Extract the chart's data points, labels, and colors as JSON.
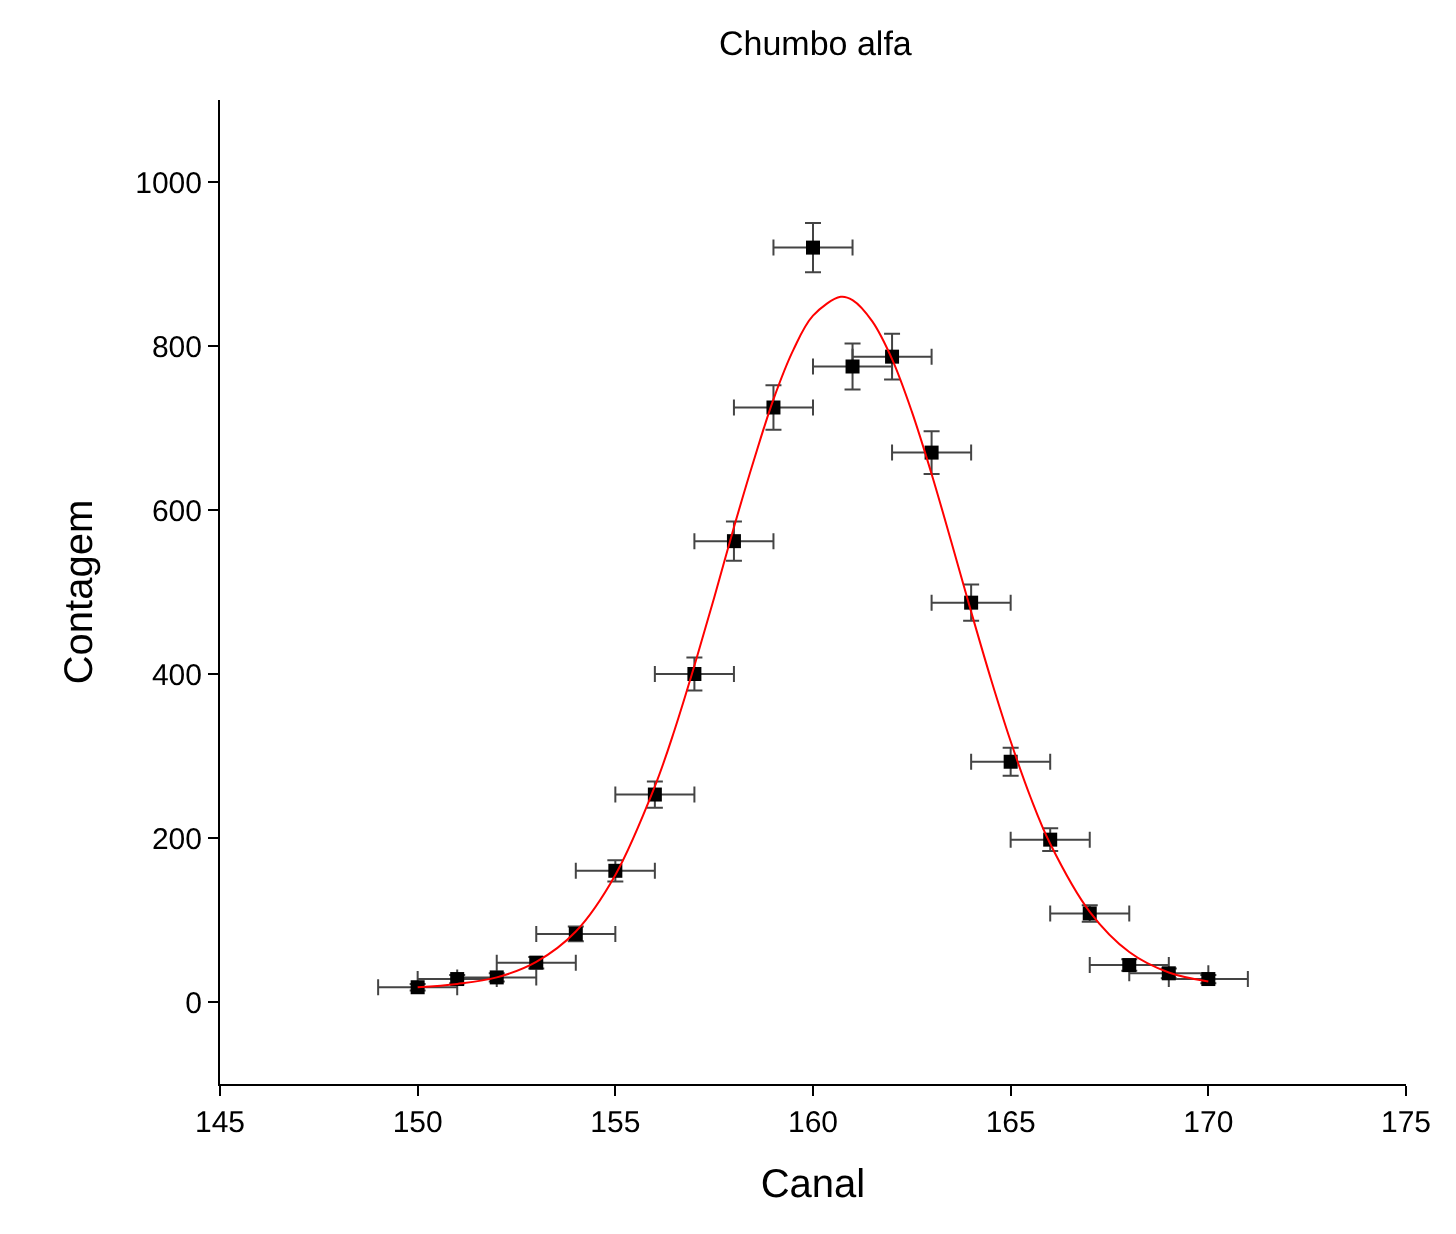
{
  "chart_data": {
    "type": "scatter",
    "title": "Chumbo alfa",
    "xlabel": "Canal",
    "ylabel": "Contagem",
    "xlim": [
      145,
      175
    ],
    "xticks": [
      145,
      150,
      155,
      160,
      165,
      170,
      175
    ],
    "ylim": [
      -100,
      1100
    ],
    "yticks": [
      0,
      200,
      400,
      600,
      800,
      1000
    ],
    "series": [
      {
        "marker": "square",
        "color": "#000000",
        "x": [
          150,
          151,
          152,
          153,
          154,
          155,
          156,
          157,
          158,
          159,
          160,
          161,
          162,
          163,
          164,
          165,
          166,
          167,
          168,
          169,
          170
        ],
        "values": [
          18,
          28,
          30,
          48,
          83,
          160,
          253,
          400,
          562,
          725,
          920,
          775,
          787,
          670,
          487,
          293,
          198,
          108,
          45,
          35,
          28
        ],
        "errors": [
          4,
          5,
          5,
          7,
          9,
          13,
          16,
          20,
          24,
          27,
          30,
          28,
          28,
          26,
          22,
          17,
          14,
          10,
          7,
          6,
          5
        ],
        "xerrors": [
          1,
          1,
          1,
          1,
          1,
          1,
          1,
          1,
          1,
          1,
          1,
          1,
          1,
          1,
          1,
          1,
          1,
          1,
          1,
          1,
          1
        ]
      },
      {
        "type": "line",
        "marker": "none",
        "color": "#ff0000",
        "x": [
          150,
          151,
          152,
          153,
          154,
          155,
          156,
          156.5,
          157,
          157.5,
          158,
          158.5,
          159,
          159.5,
          160,
          160.7,
          161,
          161.5,
          162,
          162.5,
          163,
          163.5,
          164,
          164.5,
          165,
          165.5,
          166,
          167,
          168,
          169,
          170
        ],
        "values": [
          18,
          22,
          30,
          49,
          86,
          155,
          263,
          332,
          410,
          493,
          579,
          660,
          735,
          795,
          837,
          860,
          856,
          830,
          784,
          720,
          644,
          561,
          476,
          394,
          318,
          250,
          193,
          110,
          61,
          36,
          25
        ]
      }
    ]
  }
}
